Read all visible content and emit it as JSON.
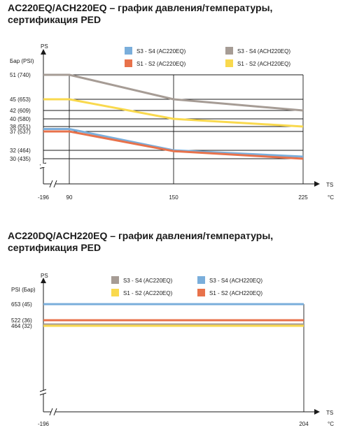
{
  "charts": [
    {
      "title_line1": "AC220EQ/ACH220EQ – график давления/температуры,",
      "title_line2": "сертификация PED",
      "y_axis_name": "PS",
      "y_units": "Бар (PSI)",
      "x_axis_name": "TS",
      "x_units": "°C",
      "y_ticks": [
        "51  (740)",
        "45  (653)",
        "42  (609)",
        "40  (580)",
        "38  (551)",
        "37  (537)",
        "32  (464)",
        "30  (435)"
      ],
      "x_ticks": [
        "-196",
        "90",
        "150",
        "225"
      ]
    },
    {
      "title_line1": "AC220DQ/ACH220EQ – график давления/температуры,",
      "title_line2": "сертификация PED",
      "y_axis_name": "PS",
      "y_units": "PSI (Бар)",
      "x_axis_name": "TS",
      "x_units": "°C",
      "y_ticks": [
        "653 (45)",
        "522 (36)",
        "464 (32)"
      ],
      "x_ticks": [
        "-196",
        "204"
      ]
    }
  ],
  "chart_data": [
    {
      "type": "line",
      "x_ticks": [
        -196,
        90,
        150,
        225
      ],
      "y_ticks": [
        30,
        32,
        37,
        38,
        40,
        42,
        45,
        51
      ],
      "ylim": [
        30,
        51
      ],
      "grid": true,
      "legend_position": "top-right",
      "series": [
        {
          "name": "S3 - S4    (AC220EQ)",
          "color": "#7aaedb",
          "x": [
            -196,
            90,
            150,
            225
          ],
          "y": [
            37.5,
            37.5,
            32,
            30.5
          ]
        },
        {
          "name": "S1 - S2    (AC220EQ)",
          "color": "#e8724b",
          "x": [
            -196,
            90,
            150,
            225
          ],
          "y": [
            37,
            37,
            31.8,
            30
          ]
        },
        {
          "name": "S3 - S4    (ACH220EQ)",
          "color": "#a69c95",
          "x": [
            -196,
            90,
            150,
            225
          ],
          "y": [
            51,
            51,
            45,
            42
          ]
        },
        {
          "name": "S1 - S2    (ACH220EQ)",
          "color": "#f9d94e",
          "x": [
            -196,
            90,
            150,
            225
          ],
          "y": [
            45,
            45,
            40,
            38
          ]
        }
      ]
    },
    {
      "type": "line",
      "x_ticks": [
        -196,
        204
      ],
      "y_ticks": [
        464,
        522,
        653
      ],
      "grid": false,
      "legend_position": "top-right",
      "series": [
        {
          "name": "S3 - S4    (AC220EQ)",
          "color": "#a69c95",
          "x": [
            -196,
            204
          ],
          "y": [
            470,
            470
          ]
        },
        {
          "name": "S3 - S4    (ACH220EQ)",
          "color": "#7aaedb",
          "x": [
            -196,
            204
          ],
          "y": [
            653,
            653
          ]
        },
        {
          "name": "S1 - S2    (AC220EQ)",
          "color": "#f9d94e",
          "x": [
            -196,
            204
          ],
          "y": [
            464,
            464
          ]
        },
        {
          "name": "S1 - S2    (ACH220EQ)",
          "color": "#e8724b",
          "x": [
            -196,
            204
          ],
          "y": [
            522,
            522
          ]
        }
      ]
    }
  ]
}
